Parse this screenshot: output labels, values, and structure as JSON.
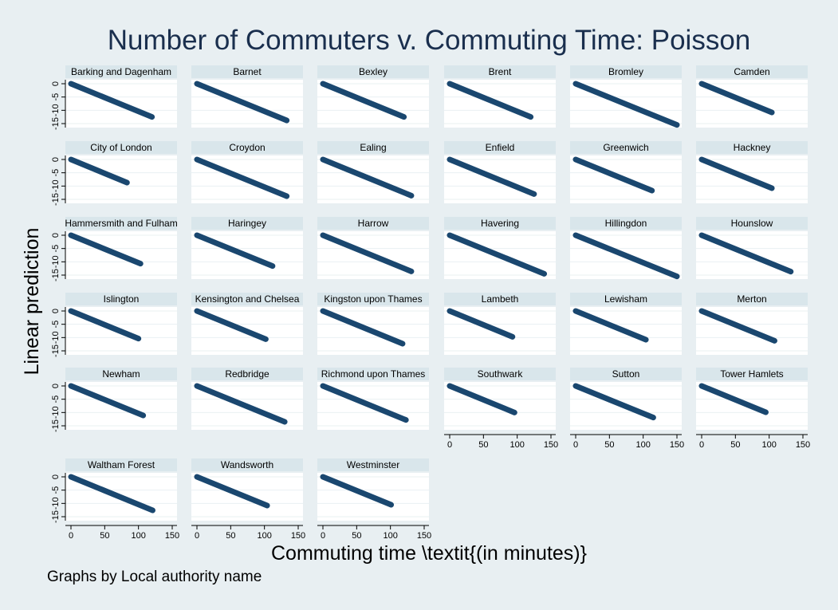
{
  "chart_data": {
    "type": "scatter",
    "title": "Number of Commuters v. Commuting Time: Poisson",
    "xlabel": "Commuting time \\textit{(in minutes)}",
    "ylabel": "Linear prediction",
    "note": "Graphs by Local authority name",
    "xlim": [
      0,
      150
    ],
    "ylim": [
      -15,
      0
    ],
    "xticks": [
      "0",
      "50",
      "100",
      "150"
    ],
    "yticks": [
      "0",
      "-5",
      "-10",
      "-15"
    ],
    "grid": true,
    "marker_color": "#1a476f",
    "background_color": "#e8eff2",
    "header_color": "#d9e6eb",
    "title_color": "#1a2f4e",
    "panels": [
      {
        "name": "Barking and Dagenham",
        "x": [
          0,
          120
        ],
        "y": [
          0,
          -12.5
        ]
      },
      {
        "name": "Barnet",
        "x": [
          0,
          133
        ],
        "y": [
          0,
          -13.8
        ]
      },
      {
        "name": "Bexley",
        "x": [
          0,
          120
        ],
        "y": [
          0,
          -12.5
        ]
      },
      {
        "name": "Brent",
        "x": [
          0,
          120
        ],
        "y": [
          0,
          -12.5
        ]
      },
      {
        "name": "Bromley",
        "x": [
          0,
          150
        ],
        "y": [
          0,
          -15.5
        ]
      },
      {
        "name": "Camden",
        "x": [
          0,
          104
        ],
        "y": [
          0,
          -10.8
        ]
      },
      {
        "name": "City of London",
        "x": [
          0,
          83
        ],
        "y": [
          0,
          -8.7
        ]
      },
      {
        "name": "Croydon",
        "x": [
          0,
          133
        ],
        "y": [
          0,
          -13.8
        ]
      },
      {
        "name": "Ealing",
        "x": [
          0,
          131
        ],
        "y": [
          0,
          -13.6
        ]
      },
      {
        "name": "Enfield",
        "x": [
          0,
          125
        ],
        "y": [
          0,
          -13
        ]
      },
      {
        "name": "Greenwich",
        "x": [
          0,
          113
        ],
        "y": [
          0,
          -11.7
        ]
      },
      {
        "name": "Hackney",
        "x": [
          0,
          104
        ],
        "y": [
          0,
          -10.8
        ]
      },
      {
        "name": "Hammersmith and Fulham",
        "x": [
          0,
          103
        ],
        "y": [
          0,
          -10.7
        ]
      },
      {
        "name": "Haringey",
        "x": [
          0,
          112
        ],
        "y": [
          0,
          -11.6
        ]
      },
      {
        "name": "Harrow",
        "x": [
          0,
          131
        ],
        "y": [
          0,
          -13.6
        ]
      },
      {
        "name": "Havering",
        "x": [
          0,
          140
        ],
        "y": [
          0,
          -14.5
        ]
      },
      {
        "name": "Hillingdon",
        "x": [
          0,
          150
        ],
        "y": [
          0,
          -15.5
        ]
      },
      {
        "name": "Hounslow",
        "x": [
          0,
          132
        ],
        "y": [
          0,
          -13.7
        ]
      },
      {
        "name": "Islington",
        "x": [
          0,
          100
        ],
        "y": [
          0,
          -10.4
        ]
      },
      {
        "name": "Kensington and Chelsea",
        "x": [
          0,
          102
        ],
        "y": [
          0,
          -10.6
        ]
      },
      {
        "name": "Kingston upon Thames",
        "x": [
          0,
          118
        ],
        "y": [
          0,
          -12.3
        ]
      },
      {
        "name": "Lambeth",
        "x": [
          0,
          93
        ],
        "y": [
          0,
          -9.7
        ]
      },
      {
        "name": "Lewisham",
        "x": [
          0,
          104
        ],
        "y": [
          0,
          -10.8
        ]
      },
      {
        "name": "Merton",
        "x": [
          0,
          108
        ],
        "y": [
          0,
          -11.2
        ]
      },
      {
        "name": "Newham",
        "x": [
          0,
          107
        ],
        "y": [
          0,
          -11.1
        ]
      },
      {
        "name": "Redbridge",
        "x": [
          0,
          130
        ],
        "y": [
          0,
          -13.5
        ]
      },
      {
        "name": "Richmond upon Thames",
        "x": [
          0,
          123
        ],
        "y": [
          0,
          -12.8
        ]
      },
      {
        "name": "Southwark",
        "x": [
          0,
          96
        ],
        "y": [
          0,
          -10
        ]
      },
      {
        "name": "Sutton",
        "x": [
          0,
          115
        ],
        "y": [
          0,
          -11.9
        ]
      },
      {
        "name": "Tower Hamlets",
        "x": [
          0,
          95
        ],
        "y": [
          0,
          -9.9
        ]
      },
      {
        "name": "Waltham Forest",
        "x": [
          0,
          121
        ],
        "y": [
          0,
          -12.6
        ]
      },
      {
        "name": "Wandsworth",
        "x": [
          0,
          104
        ],
        "y": [
          0,
          -10.8
        ]
      },
      {
        "name": "Westminster",
        "x": [
          0,
          101
        ],
        "y": [
          0,
          -10.5
        ]
      }
    ]
  }
}
